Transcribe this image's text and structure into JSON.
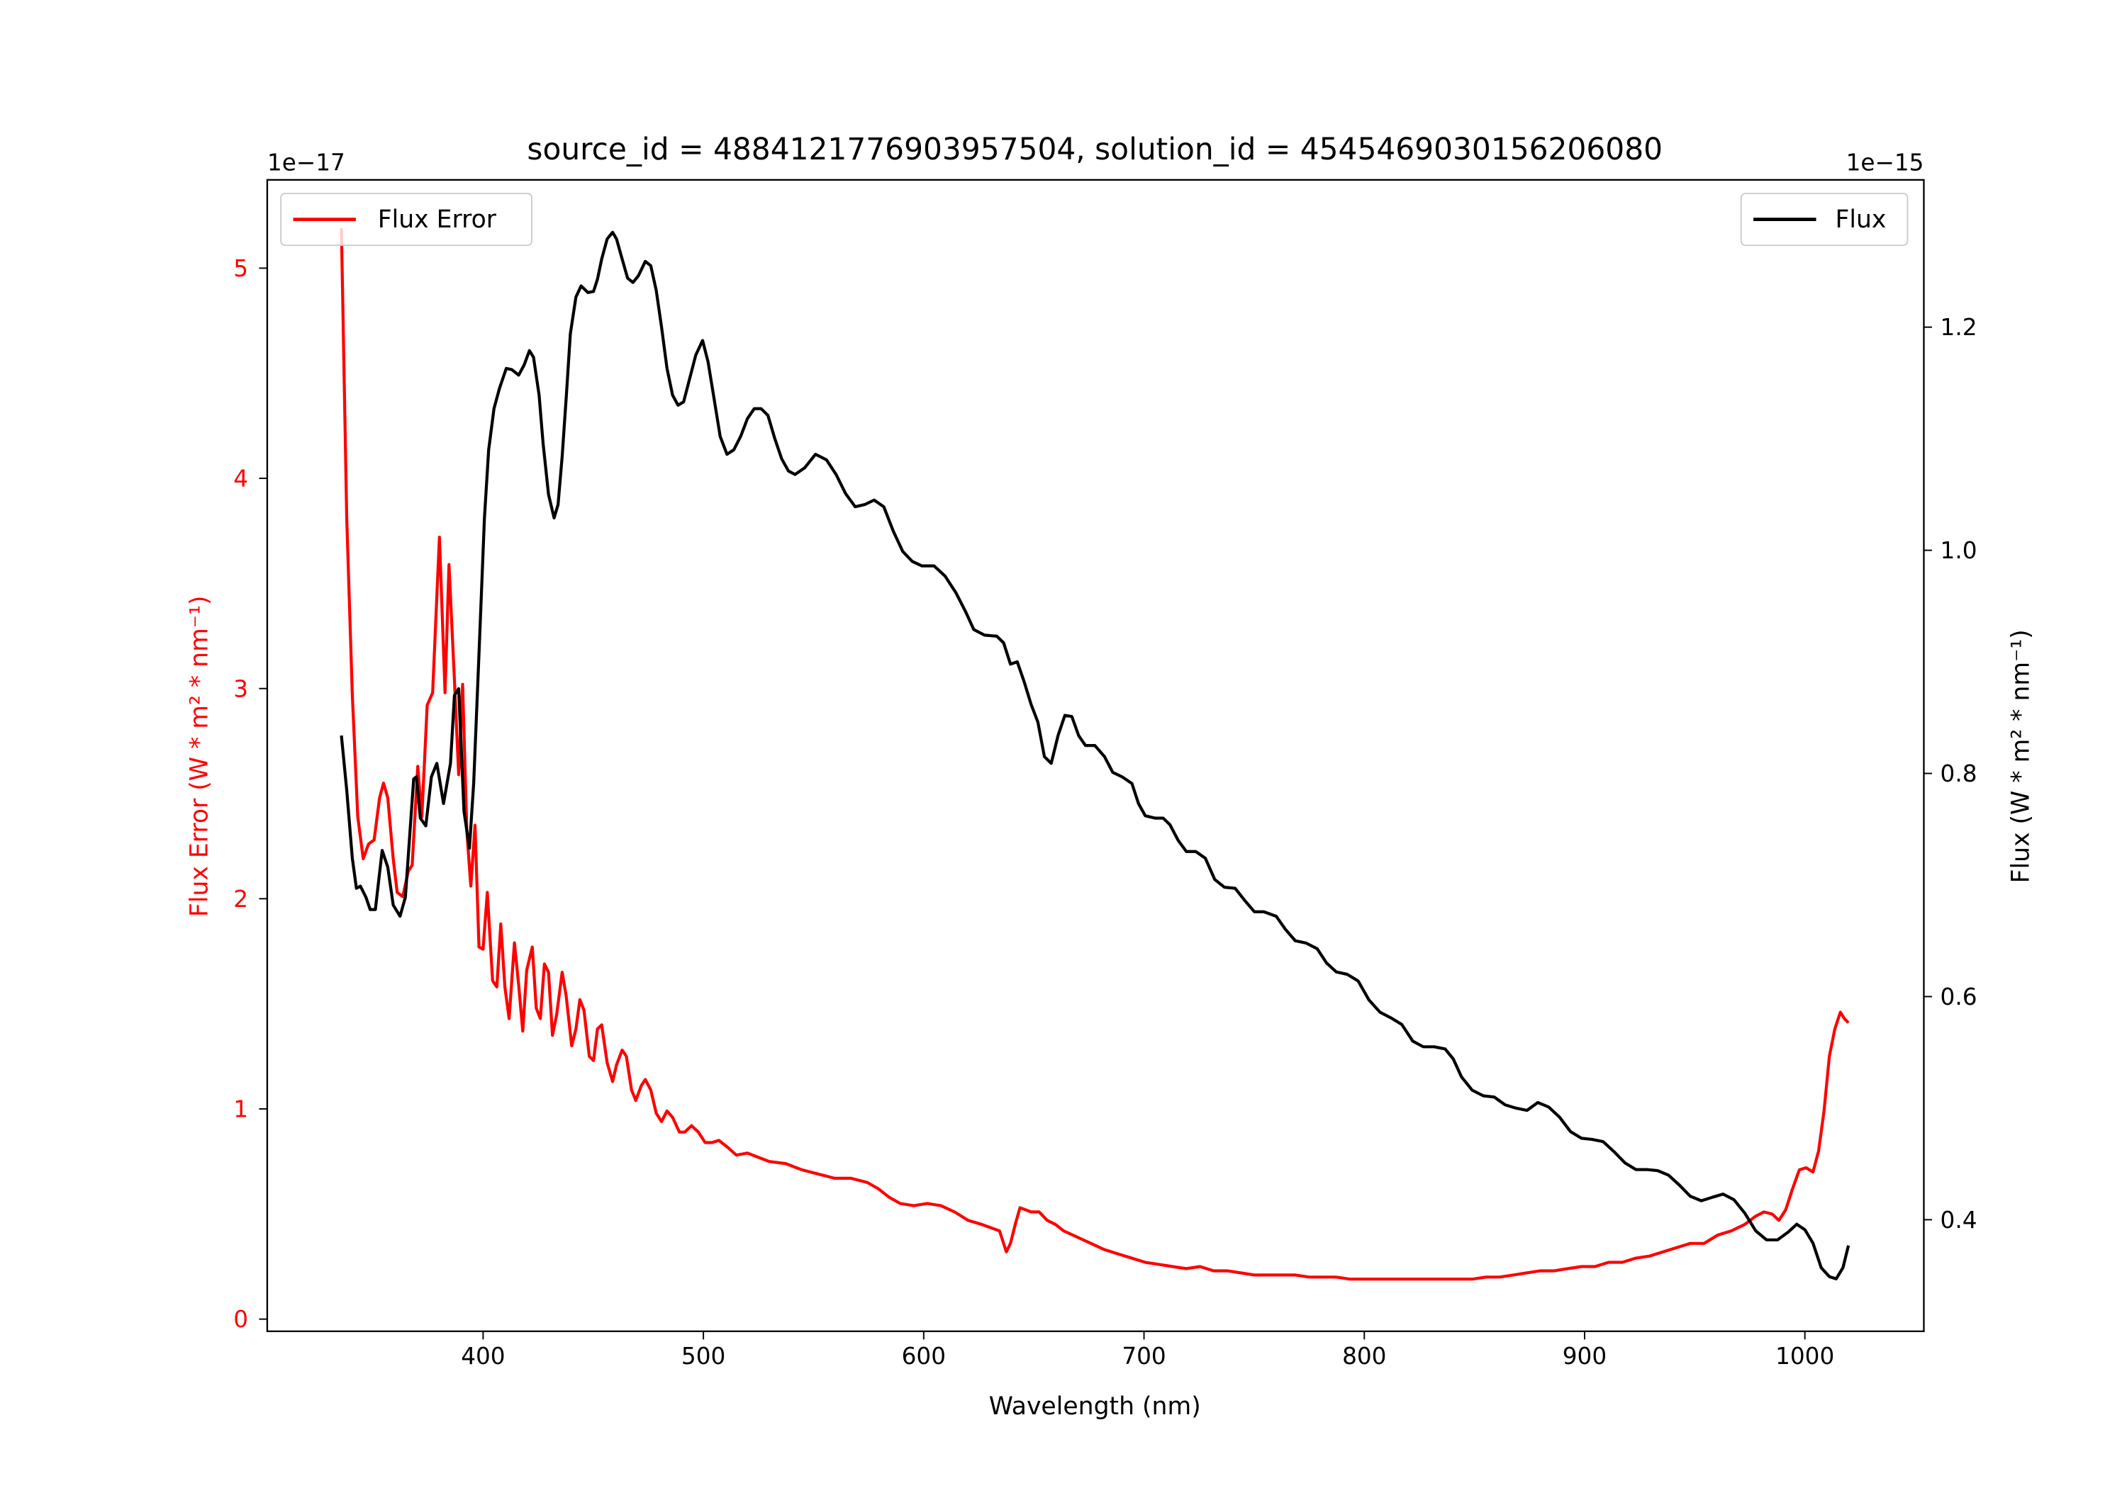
{
  "chart_data": {
    "type": "line",
    "title": "source_id = 4884121776903957504, solution_id = 4545469030156206080",
    "xlabel": "Wavelength (nm)",
    "xlim": [
      302,
      1054
    ],
    "xticks": [
      400,
      500,
      600,
      700,
      800,
      900,
      1000
    ],
    "left_axis": {
      "label": "Flux Error (W * m² * nm⁻¹)",
      "offset_text": "1e−17",
      "ylim": [
        -0.058,
        5.42
      ],
      "ticks": [
        0,
        1,
        2,
        3,
        4,
        5
      ],
      "color": "#ff0000"
    },
    "right_axis": {
      "label": "Flux (W * m² * nm⁻¹)",
      "offset_text": "1e−15",
      "ylim": [
        0.3,
        1.332
      ],
      "ticks": [
        0.4,
        0.6,
        0.8,
        1.0,
        1.2
      ],
      "color": "#000000"
    },
    "series": [
      {
        "name": "Flux Error",
        "axis": "left",
        "color": "#ff0000",
        "legend": "top-left",
        "x": [
          335.7,
          338.1,
          340.6,
          343.1,
          345.6,
          348,
          350.5,
          353,
          354.8,
          356.7,
          359.2,
          361,
          363.5,
          366,
          367.8,
          370.3,
          372.2,
          374.6,
          377.1,
          380.2,
          382.7,
          384.5,
          387,
          388.9,
          390.7,
          392.6,
          394.4,
          396.3,
          398.1,
          400,
          401.9,
          404.3,
          406.2,
          408,
          409.9,
          411.8,
          414.2,
          416.1,
          418,
          419.8,
          422.3,
          424.1,
          426,
          427.8,
          429.7,
          431.5,
          433.4,
          435.9,
          437.7,
          440.2,
          442.1,
          443.9,
          445.8,
          448.2,
          450.1,
          451.9,
          453.8,
          456.3,
          458.8,
          460.6,
          463.1,
          465,
          467.4,
          469.3,
          471.8,
          473.6,
          476.1,
          478.6,
          481,
          483.5,
          486,
          489.1,
          491.5,
          494.6,
          497.7,
          500.8,
          503.9,
          507,
          510.7,
          515,
          520,
          524.9,
          529.9,
          537.3,
          544.7,
          552.2,
          559.6,
          567,
          574.4,
          579.4,
          584.3,
          589.3,
          595.5,
          601.6,
          607.8,
          614,
          620.2,
          626.4,
          634.4,
          637.5,
          639.4,
          641.8,
          643.7,
          646.2,
          648.7,
          652.4,
          656.1,
          659.8,
          663.5,
          669.7,
          675.9,
          682.1,
          688.2,
          694.4,
          700.6,
          706.8,
          713,
          719.2,
          725.4,
          731.6,
          737.7,
          743.9,
          750.1,
          756.3,
          762.5,
          768.7,
          774.9,
          781.1,
          787.2,
          793.4,
          799.6,
          805.8,
          812,
          818.2,
          824.3,
          830.5,
          836.7,
          842.9,
          849.1,
          855.3,
          861.4,
          867.6,
          873.8,
          880,
          886.2,
          892.4,
          898.5,
          904.7,
          910.9,
          917.1,
          923.3,
          929.5,
          935.6,
          941.8,
          948,
          954.2,
          960.4,
          966.6,
          972.7,
          977.7,
          981.4,
          985.1,
          988.2,
          991.3,
          994.4,
          997.5,
          1000.6,
          1003.7,
          1006.2,
          1008.7,
          1011.1,
          1013.6,
          1016.1,
          1017.9,
          1019.8
        ],
        "y": [
          5.19,
          3.81,
          2.97,
          2.39,
          2.19,
          2.26,
          2.28,
          2.48,
          2.55,
          2.48,
          2.19,
          2.03,
          2.01,
          2.13,
          2.16,
          2.63,
          2.39,
          2.92,
          2.98,
          3.72,
          2.98,
          3.59,
          3.04,
          2.59,
          3.02,
          2.32,
          2.06,
          2.35,
          1.77,
          1.76,
          2.03,
          1.61,
          1.58,
          1.88,
          1.58,
          1.43,
          1.79,
          1.59,
          1.37,
          1.66,
          1.77,
          1.48,
          1.43,
          1.69,
          1.65,
          1.35,
          1.45,
          1.65,
          1.54,
          1.3,
          1.38,
          1.52,
          1.47,
          1.25,
          1.23,
          1.38,
          1.4,
          1.22,
          1.13,
          1.21,
          1.28,
          1.25,
          1.09,
          1.04,
          1.11,
          1.14,
          1.09,
          0.98,
          0.94,
          0.99,
          0.96,
          0.89,
          0.89,
          0.92,
          0.89,
          0.84,
          0.84,
          0.85,
          0.82,
          0.78,
          0.79,
          0.77,
          0.75,
          0.74,
          0.71,
          0.69,
          0.67,
          0.67,
          0.65,
          0.62,
          0.58,
          0.55,
          0.54,
          0.55,
          0.54,
          0.51,
          0.47,
          0.45,
          0.42,
          0.32,
          0.36,
          0.46,
          0.53,
          0.52,
          0.51,
          0.51,
          0.47,
          0.45,
          0.42,
          0.39,
          0.36,
          0.33,
          0.31,
          0.29,
          0.27,
          0.26,
          0.25,
          0.24,
          0.25,
          0.23,
          0.23,
          0.22,
          0.21,
          0.21,
          0.21,
          0.21,
          0.2,
          0.2,
          0.2,
          0.19,
          0.19,
          0.19,
          0.19,
          0.19,
          0.19,
          0.19,
          0.19,
          0.19,
          0.19,
          0.2,
          0.2,
          0.21,
          0.22,
          0.23,
          0.23,
          0.24,
          0.25,
          0.25,
          0.27,
          0.27,
          0.29,
          0.3,
          0.32,
          0.34,
          0.36,
          0.36,
          0.4,
          0.42,
          0.45,
          0.49,
          0.51,
          0.5,
          0.47,
          0.52,
          0.62,
          0.71,
          0.72,
          0.7,
          0.8,
          0.99,
          1.25,
          1.38,
          1.46,
          1.43,
          1.41
        ]
      },
      {
        "name": "Flux",
        "axis": "right",
        "color": "#000000",
        "legend": "top-right",
        "x": [
          335.7,
          338.1,
          340.6,
          342.5,
          344.3,
          346.8,
          348.7,
          351.1,
          354.2,
          356.7,
          359.2,
          362.3,
          364.7,
          368.5,
          369.7,
          371.5,
          374,
          376.5,
          379,
          382,
          385.2,
          387,
          388.9,
          391.3,
          393.8,
          395.7,
          398.1,
          400.6,
          402.5,
          404.9,
          407.4,
          410.5,
          413,
          416.1,
          418.6,
          421,
          422.9,
          425.4,
          427.2,
          429.7,
          432.2,
          434,
          435.9,
          437.8,
          439.6,
          442.1,
          444.5,
          447.6,
          450.1,
          451.9,
          453.8,
          456.3,
          458.8,
          460.6,
          463.1,
          465.6,
          468,
          470.5,
          473.6,
          476.1,
          478.6,
          481,
          483.5,
          486,
          488.5,
          491,
          493.4,
          496.5,
          499.6,
          502.1,
          504.6,
          507.6,
          510.7,
          513.8,
          516.9,
          520,
          523.1,
          526.2,
          529.3,
          532.4,
          535.5,
          538.6,
          541.6,
          546,
          550.9,
          555.9,
          560.2,
          564.5,
          568.9,
          573.2,
          577.5,
          581.9,
          586.2,
          590.5,
          594.8,
          599.2,
          604.7,
          609.7,
          614.6,
          619,
          622.7,
          627.6,
          633.2,
          636.3,
          639.4,
          642.5,
          645.6,
          648.7,
          651.8,
          654.8,
          657.9,
          661,
          664.1,
          667.2,
          670.3,
          673.4,
          677.7,
          682.1,
          685.8,
          690.1,
          694.5,
          697.5,
          700.6,
          705,
          708.7,
          711.8,
          715.5,
          719.2,
          723.5,
          727.8,
          732.1,
          736.5,
          741.4,
          745.8,
          750.1,
          754.4,
          760,
          764.3,
          768.7,
          773.6,
          778.6,
          782.9,
          787.3,
          792.2,
          797.2,
          802.1,
          807.1,
          812,
          817,
          822,
          826.8,
          831.7,
          836.7,
          840.4,
          844.1,
          849,
          854,
          859,
          863.9,
          868.8,
          873.8,
          878.8,
          883.7,
          888.6,
          893.6,
          898.5,
          903.5,
          908.4,
          913.4,
          918.3,
          923.3,
          928.2,
          933.2,
          938.1,
          943,
          948,
          953,
          957.9,
          962.9,
          967.8,
          972.7,
          977.7,
          982.6,
          987.6,
          992.5,
          996.3,
          1000,
          1003.7,
          1007.4,
          1011.1,
          1014.2,
          1017.3,
          1019.8
        ],
        "y": [
          0.834,
          0.785,
          0.724,
          0.697,
          0.699,
          0.689,
          0.678,
          0.678,
          0.731,
          0.716,
          0.682,
          0.672,
          0.689,
          0.795,
          0.797,
          0.76,
          0.753,
          0.797,
          0.809,
          0.773,
          0.809,
          0.87,
          0.876,
          0.766,
          0.733,
          0.791,
          0.907,
          1.029,
          1.09,
          1.127,
          1.145,
          1.163,
          1.162,
          1.157,
          1.166,
          1.179,
          1.173,
          1.139,
          1.096,
          1.05,
          1.029,
          1.041,
          1.084,
          1.139,
          1.194,
          1.227,
          1.237,
          1.231,
          1.232,
          1.243,
          1.261,
          1.279,
          1.285,
          1.279,
          1.261,
          1.244,
          1.24,
          1.246,
          1.259,
          1.255,
          1.233,
          1.2,
          1.163,
          1.139,
          1.13,
          1.133,
          1.151,
          1.175,
          1.188,
          1.169,
          1.139,
          1.102,
          1.086,
          1.09,
          1.102,
          1.118,
          1.127,
          1.127,
          1.121,
          1.1,
          1.082,
          1.071,
          1.068,
          1.074,
          1.086,
          1.081,
          1.068,
          1.051,
          1.039,
          1.041,
          1.045,
          1.039,
          1.017,
          0.999,
          0.99,
          0.986,
          0.986,
          0.977,
          0.962,
          0.945,
          0.929,
          0.924,
          0.923,
          0.917,
          0.898,
          0.9,
          0.882,
          0.862,
          0.846,
          0.815,
          0.809,
          0.834,
          0.852,
          0.851,
          0.834,
          0.825,
          0.825,
          0.815,
          0.801,
          0.797,
          0.791,
          0.773,
          0.762,
          0.76,
          0.76,
          0.754,
          0.74,
          0.73,
          0.73,
          0.724,
          0.705,
          0.698,
          0.697,
          0.686,
          0.676,
          0.676,
          0.672,
          0.66,
          0.65,
          0.648,
          0.643,
          0.63,
          0.622,
          0.62,
          0.614,
          0.597,
          0.586,
          0.581,
          0.575,
          0.56,
          0.555,
          0.555,
          0.553,
          0.544,
          0.528,
          0.516,
          0.511,
          0.51,
          0.503,
          0.5,
          0.498,
          0.505,
          0.501,
          0.492,
          0.479,
          0.473,
          0.472,
          0.47,
          0.461,
          0.451,
          0.445,
          0.445,
          0.444,
          0.44,
          0.431,
          0.421,
          0.417,
          0.42,
          0.423,
          0.418,
          0.406,
          0.39,
          0.382,
          0.382,
          0.389,
          0.396,
          0.391,
          0.379,
          0.357,
          0.349,
          0.347,
          0.357,
          0.377
        ]
      }
    ]
  }
}
